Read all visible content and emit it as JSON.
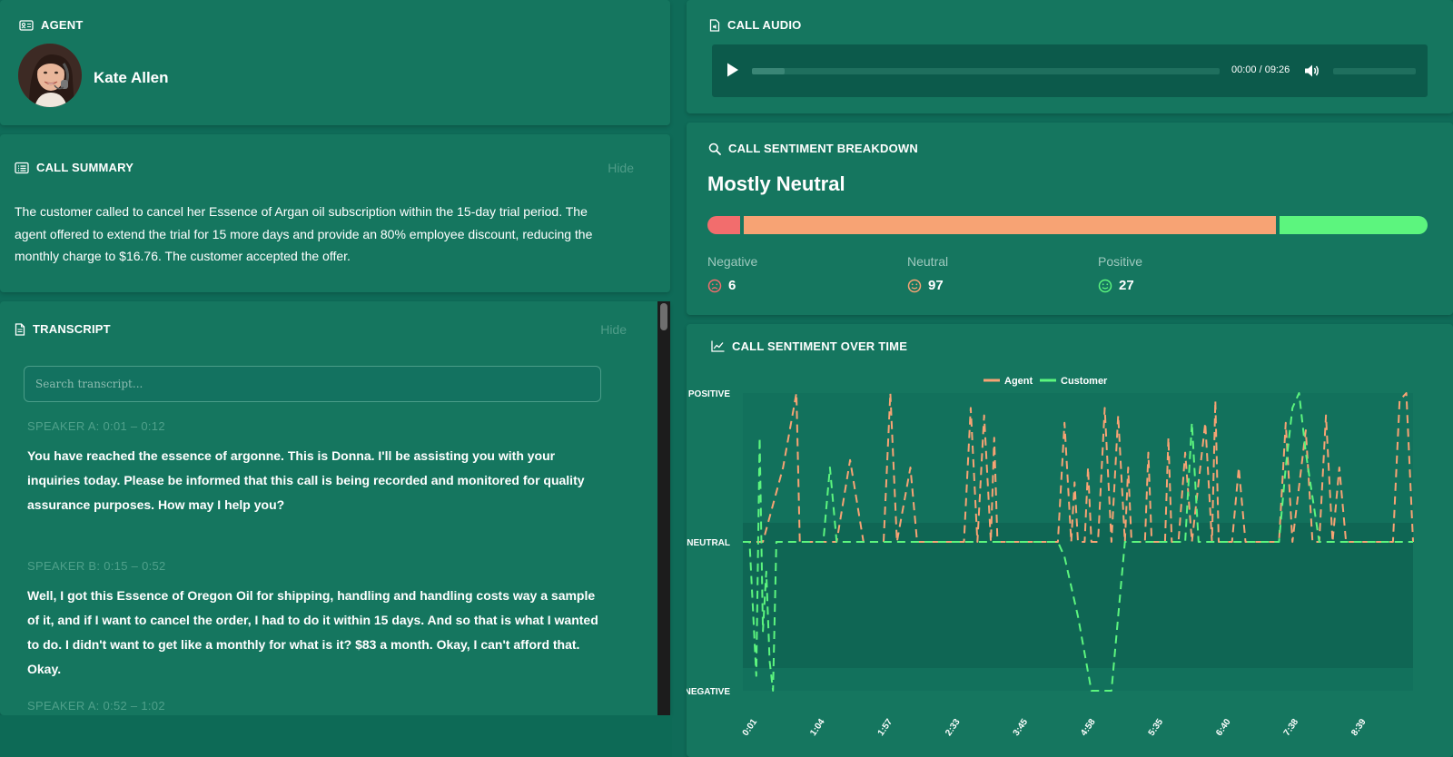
{
  "agent": {
    "header": "AGENT",
    "name": "Kate Allen",
    "avatar_icon": "avatar-photo"
  },
  "summary": {
    "header": "CALL SUMMARY",
    "hide_label": "Hide",
    "text": "The customer called to cancel her Essence of Argan oil subscription within the 15-day trial period. The agent offered to extend the trial for 15 more days and provide an 80% employee discount, reducing the monthly charge to $16.76. The customer accepted the offer."
  },
  "transcript": {
    "header": "TRANSCRIPT",
    "hide_label": "Hide",
    "search_placeholder": "Search transcript...",
    "utterances": [
      {
        "speaker": "SPEAKER A: 0:01 – 0:12",
        "text": "You have reached the essence of argonne. This is Donna. I'll be assisting you with your inquiries today. Please be informed that this call is being recorded and monitored for quality assurance purposes. How may I help you?"
      },
      {
        "speaker": "SPEAKER B: 0:15 – 0:52",
        "text": "Well, I got this Essence of Oregon Oil for shipping, handling and handling costs way a sample of it, and if I want to cancel the order, I had to do it within 15 days. And so that is what I wanted to do. I didn't want to get like a monthly for what is it? $83 a month. Okay, I can't afford that. Okay."
      },
      {
        "speaker": "SPEAKER A: 0:52 – 1:02",
        "text": ""
      }
    ]
  },
  "audio": {
    "header": "CALL AUDIO",
    "time": "00:00 / 09:26",
    "progress_fraction": 0.07
  },
  "breakdown": {
    "header": "CALL SENTIMENT BREAKDOWN",
    "overall": "Mostly Neutral",
    "negative": {
      "label": "Negative",
      "count": "6",
      "color": "#f26d6d"
    },
    "neutral": {
      "label": "Neutral",
      "count": "97",
      "color": "#f7a374"
    },
    "positive": {
      "label": "Positive",
      "count": "27",
      "color": "#5cf57e"
    }
  },
  "overtime": {
    "header": "CALL SENTIMENT OVER TIME"
  },
  "chart_data": {
    "type": "line",
    "title": "CALL SENTIMENT OVER TIME",
    "y_categories": [
      "NEGATIVE",
      "NEUTRAL",
      "POSITIVE"
    ],
    "ylim": [
      -1,
      1
    ],
    "x_ticks": [
      "0:01",
      "1:04",
      "1:57",
      "2:33",
      "3:45",
      "4:58",
      "5:35",
      "6:40",
      "7:38",
      "8:39"
    ],
    "xlim": [
      0,
      100
    ],
    "legend": [
      "Agent",
      "Customer"
    ],
    "series": [
      {
        "name": "Agent",
        "color": "#f7a374",
        "points": [
          [
            0,
            0
          ],
          [
            3,
            0
          ],
          [
            6,
            0.5
          ],
          [
            8,
            1
          ],
          [
            8.5,
            0
          ],
          [
            12,
            0
          ],
          [
            14,
            0
          ],
          [
            16,
            0.55
          ],
          [
            18,
            0
          ],
          [
            20,
            0
          ],
          [
            21,
            0
          ],
          [
            22,
            1
          ],
          [
            23,
            0
          ],
          [
            25,
            0.5
          ],
          [
            26,
            0
          ],
          [
            28,
            0
          ],
          [
            33,
            0
          ],
          [
            34,
            0.9
          ],
          [
            35,
            0
          ],
          [
            36,
            0.85
          ],
          [
            37,
            0
          ],
          [
            37.5,
            0.7
          ],
          [
            38,
            0
          ],
          [
            40,
            0
          ],
          [
            47,
            0
          ],
          [
            48,
            0.8
          ],
          [
            49,
            0
          ],
          [
            49.5,
            0.4
          ],
          [
            50,
            0
          ],
          [
            51,
            0
          ],
          [
            51.5,
            0.5
          ],
          [
            52,
            0
          ],
          [
            53,
            0
          ],
          [
            54,
            0.9
          ],
          [
            55,
            0
          ],
          [
            56,
            0.85
          ],
          [
            57,
            0
          ],
          [
            57.5,
            0.5
          ],
          [
            58,
            0
          ],
          [
            59,
            0
          ],
          [
            60,
            0
          ],
          [
            60.5,
            0.6
          ],
          [
            61,
            0
          ],
          [
            62,
            0
          ],
          [
            63,
            0
          ],
          [
            63.5,
            0.7
          ],
          [
            64,
            0
          ],
          [
            65,
            0
          ],
          [
            66,
            0.6
          ],
          [
            67,
            0
          ],
          [
            69,
            0.8
          ],
          [
            70,
            0
          ],
          [
            70.5,
            0.95
          ],
          [
            71,
            0
          ],
          [
            73,
            0
          ],
          [
            74,
            0.5
          ],
          [
            75,
            0
          ],
          [
            76,
            0
          ],
          [
            77,
            0
          ],
          [
            78,
            0
          ],
          [
            80,
            0
          ],
          [
            81,
            0.8
          ],
          [
            82,
            0
          ],
          [
            84,
            0.75
          ],
          [
            85,
            0
          ],
          [
            86,
            0
          ],
          [
            87,
            0.85
          ],
          [
            88,
            0
          ],
          [
            89,
            0.5
          ],
          [
            90,
            0
          ],
          [
            92,
            0
          ],
          [
            93,
            0
          ],
          [
            94,
            0
          ],
          [
            95,
            0
          ],
          [
            96,
            0
          ],
          [
            97,
            0
          ],
          [
            98,
            0.95
          ],
          [
            99,
            1
          ],
          [
            100,
            0
          ]
        ]
      },
      {
        "name": "Customer",
        "color": "#5cf57e",
        "points": [
          [
            0,
            0
          ],
          [
            1,
            0
          ],
          [
            2,
            -0.9
          ],
          [
            2.5,
            0.7
          ],
          [
            3,
            -0.6
          ],
          [
            3.5,
            -0.2
          ],
          [
            4,
            -0.8
          ],
          [
            4.5,
            -1
          ],
          [
            5,
            0
          ],
          [
            7,
            0
          ],
          [
            9,
            0
          ],
          [
            12,
            0
          ],
          [
            13,
            0.5
          ],
          [
            14,
            0
          ],
          [
            15,
            0
          ],
          [
            20,
            0
          ],
          [
            24,
            0
          ],
          [
            30,
            0
          ],
          [
            40,
            0
          ],
          [
            45,
            0
          ],
          [
            46,
            0
          ],
          [
            47,
            0
          ],
          [
            48,
            -0.1
          ],
          [
            50,
            -0.5
          ],
          [
            52,
            -1
          ],
          [
            55,
            -1
          ],
          [
            57,
            0
          ],
          [
            60,
            0
          ],
          [
            64,
            0
          ],
          [
            66,
            0
          ],
          [
            67,
            0.8
          ],
          [
            68,
            0
          ],
          [
            70,
            0
          ],
          [
            75,
            0
          ],
          [
            78,
            0
          ],
          [
            80,
            0
          ],
          [
            81,
            0.5
          ],
          [
            82,
            0.9
          ],
          [
            83,
            1
          ],
          [
            84,
            0.6
          ],
          [
            85,
            0.3
          ],
          [
            86,
            0
          ],
          [
            88,
            0
          ],
          [
            90,
            0
          ],
          [
            95,
            0
          ],
          [
            98,
            0
          ],
          [
            100,
            0
          ]
        ]
      }
    ]
  }
}
